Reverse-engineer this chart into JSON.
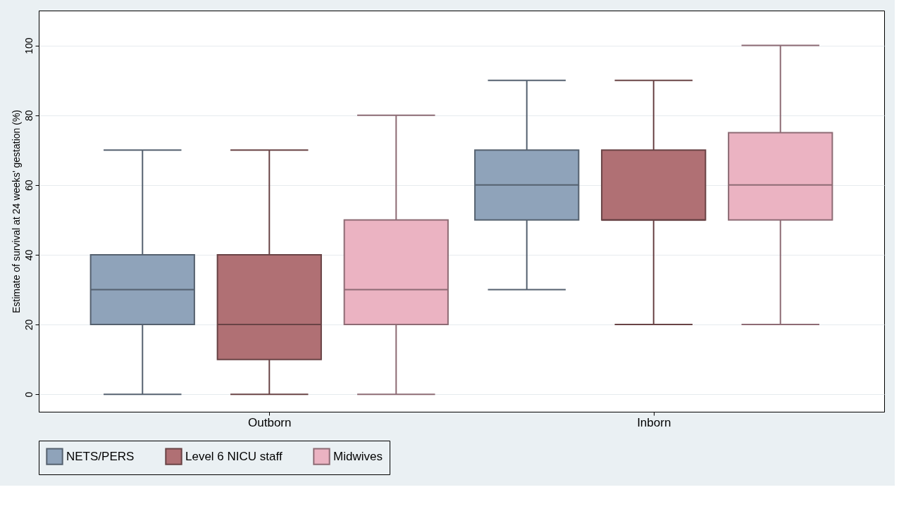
{
  "chart_data": {
    "type": "box",
    "ylabel": "Estimate of survival at 24 weeks' gestation (%)",
    "categories": [
      "Outborn",
      "Inborn"
    ],
    "series": [
      {
        "name": "NETS/PERS",
        "color": "#8fa3ba",
        "boxes": [
          {
            "low": 0,
            "q1": 20,
            "median": 30,
            "q3": 40,
            "high": 70
          },
          {
            "low": 30,
            "q1": 50,
            "median": 60,
            "q3": 70,
            "high": 90
          }
        ]
      },
      {
        "name": "Level 6 NICU staff",
        "color": "#b07074",
        "boxes": [
          {
            "low": 0,
            "q1": 10,
            "median": 20,
            "q3": 40,
            "high": 70
          },
          {
            "low": 20,
            "q1": 50,
            "median": 50,
            "q3": 70,
            "high": 90
          }
        ]
      },
      {
        "name": "Midwives",
        "color": "#ebb3c2",
        "boxes": [
          {
            "low": 0,
            "q1": 20,
            "median": 30,
            "q3": 50,
            "high": 80
          },
          {
            "low": 20,
            "q1": 50,
            "median": 60,
            "q3": 75,
            "high": 100
          }
        ]
      }
    ],
    "ylim": [
      -5,
      110
    ],
    "yticks": [
      0,
      20,
      40,
      60,
      80,
      100
    ],
    "grid": "y",
    "legend": "bottom"
  }
}
